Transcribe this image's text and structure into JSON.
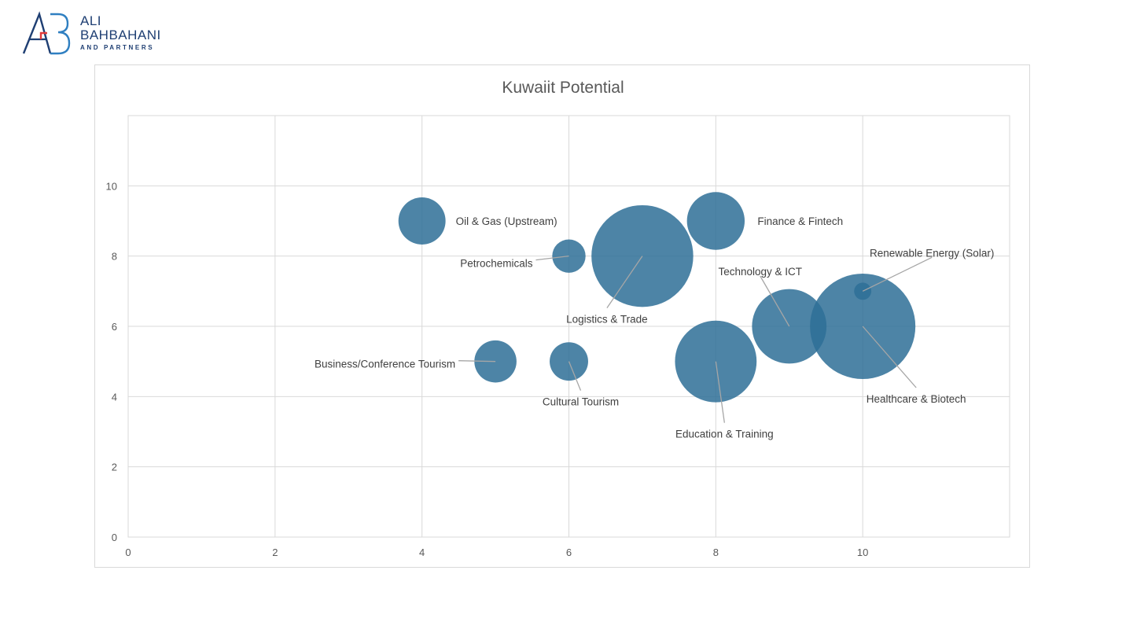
{
  "brand": {
    "name_line1": "ALI",
    "name_line2": "BAHBAHANI",
    "name_line3": "AND PARTNERS",
    "colors": {
      "navy": "#1f3f73",
      "blue": "#2f7fc1",
      "red": "#e23b3b"
    }
  },
  "chart_data": {
    "type": "scatter",
    "subtype": "bubble",
    "title": "Kuwaiit Potential",
    "xlabel": "",
    "ylabel": "",
    "xlim": [
      0,
      12
    ],
    "ylim": [
      0,
      12
    ],
    "xticks": [
      0,
      2,
      4,
      6,
      8,
      10
    ],
    "yticks": [
      0,
      2,
      4,
      6,
      8,
      10
    ],
    "grid": true,
    "legend": "none",
    "bubble_color": "#2e6e96",
    "points": [
      {
        "label": "Oil & Gas (Upstream)",
        "x": 4,
        "y": 9,
        "size": 3
      },
      {
        "label": "Petrochemicals",
        "x": 6,
        "y": 8,
        "size": 1.5
      },
      {
        "label": "Logistics & Trade",
        "x": 7,
        "y": 8,
        "size": 14
      },
      {
        "label": "Finance & Fintech",
        "x": 8,
        "y": 9,
        "size": 4.5
      },
      {
        "label": "Renewable Energy (Solar)",
        "x": 10,
        "y": 7,
        "size": 0.4
      },
      {
        "label": "Technology & ICT",
        "x": 9,
        "y": 6,
        "size": 7.5
      },
      {
        "label": "Healthcare & Biotech",
        "x": 10,
        "y": 6,
        "size": 15
      },
      {
        "label": "Business/Conference Tourism",
        "x": 5,
        "y": 5,
        "size": 2.4
      },
      {
        "label": "Cultural Tourism",
        "x": 6,
        "y": 5,
        "size": 2
      },
      {
        "label": "Education & Training",
        "x": 8,
        "y": 5,
        "size": 9
      }
    ]
  }
}
